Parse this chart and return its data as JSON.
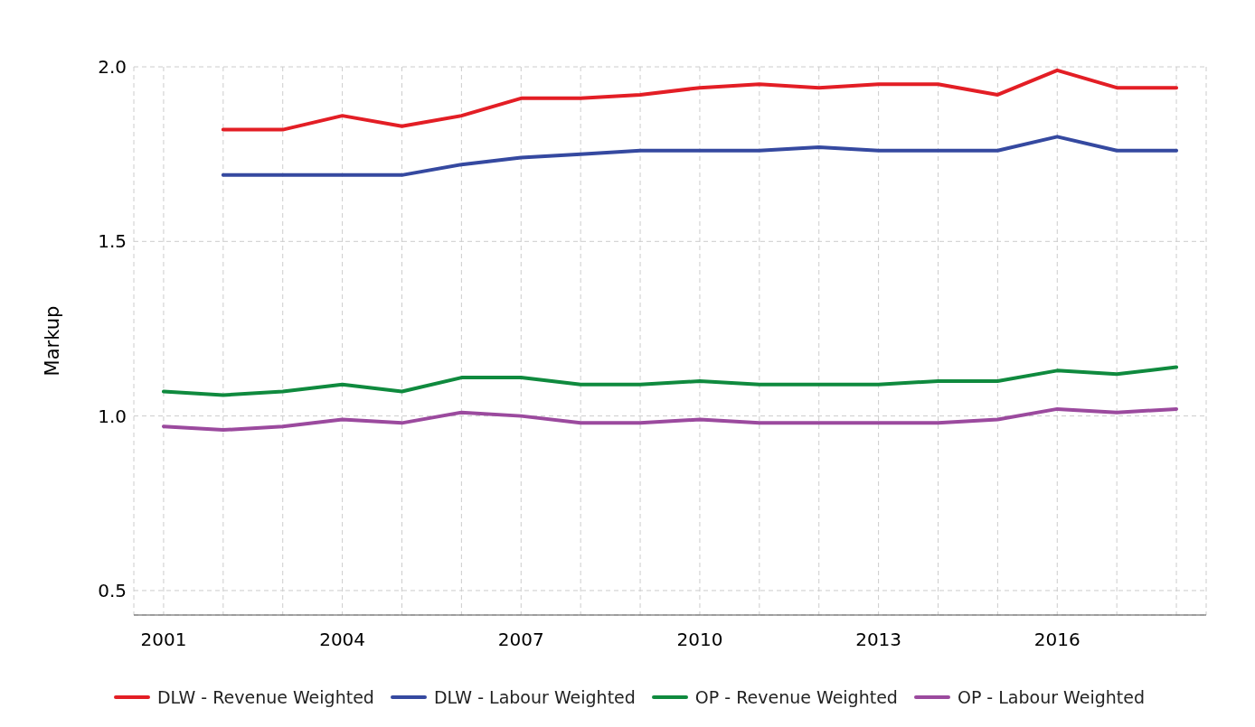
{
  "chart_data": {
    "type": "line",
    "ylabel": "Markup",
    "x": [
      2001,
      2002,
      2003,
      2004,
      2005,
      2006,
      2007,
      2008,
      2009,
      2010,
      2011,
      2012,
      2013,
      2014,
      2015,
      2016,
      2017,
      2018
    ],
    "series": [
      {
        "name": "DLW - Revenue Weighted",
        "color": "#e31e25",
        "values": [
          null,
          1.82,
          1.82,
          1.86,
          1.83,
          1.86,
          1.91,
          1.91,
          1.92,
          1.94,
          1.95,
          1.94,
          1.95,
          1.95,
          1.92,
          1.99,
          1.94,
          1.94
        ]
      },
      {
        "name": "DLW - Labour Weighted",
        "color": "#3549a0",
        "values": [
          null,
          1.69,
          1.69,
          1.69,
          1.69,
          1.72,
          1.74,
          1.75,
          1.76,
          1.76,
          1.76,
          1.77,
          1.76,
          1.76,
          1.76,
          1.8,
          1.76,
          1.76
        ]
      },
      {
        "name": "OP - Revenue Weighted",
        "color": "#0f8a3e",
        "values": [
          1.07,
          1.06,
          1.07,
          1.09,
          1.07,
          1.11,
          1.11,
          1.09,
          1.09,
          1.1,
          1.09,
          1.09,
          1.09,
          1.1,
          1.1,
          1.13,
          1.12,
          1.14
        ]
      },
      {
        "name": "OP - Labour Weighted",
        "color": "#9b4a9e",
        "values": [
          0.97,
          0.96,
          0.97,
          0.99,
          0.98,
          1.01,
          1.0,
          0.98,
          0.98,
          0.99,
          0.98,
          0.98,
          0.98,
          0.98,
          0.99,
          1.02,
          1.01,
          1.02
        ]
      }
    ],
    "xlim": [
      2000.5,
      2018.5
    ],
    "xticks": [
      2001,
      {
        "value": 2002,
        "label": null
      },
      {
        "value": 2003,
        "label": null
      },
      2004,
      {
        "value": 2005,
        "label": null
      },
      {
        "value": 2006,
        "label": null
      },
      2007,
      {
        "value": 2008,
        "label": null
      },
      {
        "value": 2009,
        "label": null
      },
      2010,
      {
        "value": 2011,
        "label": null
      },
      {
        "value": 2012,
        "label": null
      },
      2013,
      {
        "value": 2014,
        "label": null
      },
      {
        "value": 2015,
        "label": null
      },
      2016,
      {
        "value": 2017,
        "label": null
      },
      {
        "value": 2018,
        "label": null
      }
    ],
    "ylim": [
      0.43,
      2.0
    ],
    "yticks": [
      {
        "value": 0.5,
        "label": "0.5"
      },
      {
        "value": 1,
        "label": "1.0"
      },
      {
        "value": 1.5,
        "label": "1.5"
      },
      {
        "value": 2,
        "label": "2.0"
      }
    ],
    "grid": true,
    "legend": "bottom",
    "marker": "none",
    "line_style": "solid"
  }
}
